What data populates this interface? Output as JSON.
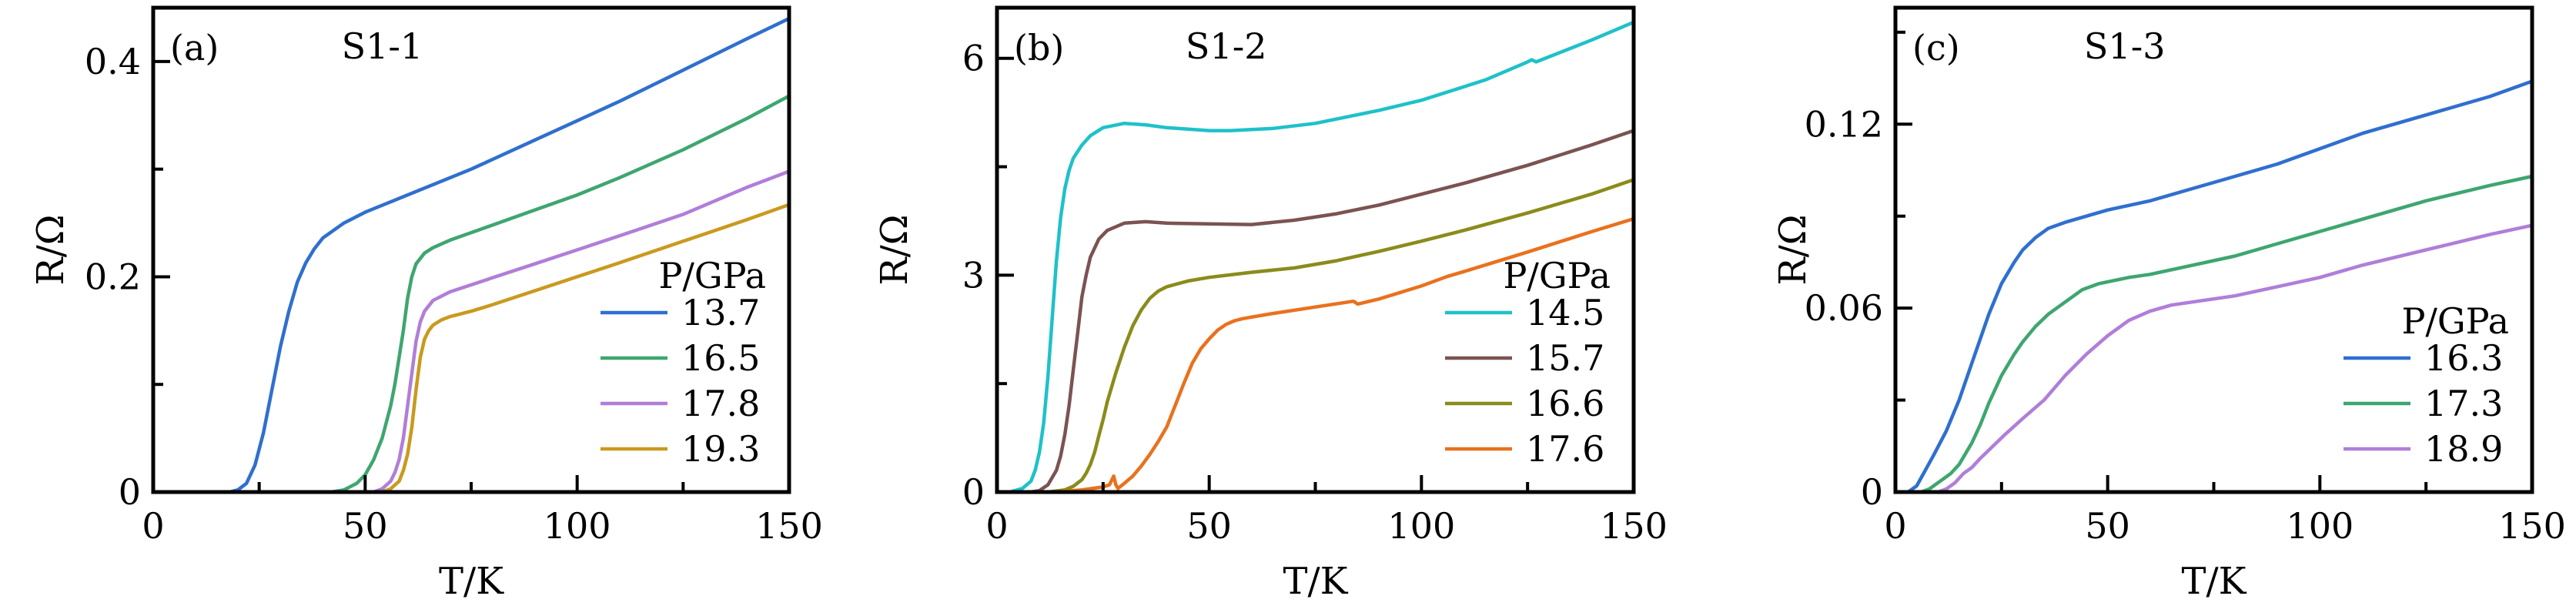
{
  "chart_data": [
    {
      "type": "line",
      "panel_label": "(a)",
      "title": "S1-1",
      "xlabel": "T/K",
      "ylabel": "R/Ω",
      "xlim": [
        0,
        150
      ],
      "ylim": [
        0,
        0.45
      ],
      "xticks": [
        0,
        50,
        100,
        150
      ],
      "xtick_labels": [
        "0",
        "50",
        "100",
        "150"
      ],
      "xminor": [
        25,
        75,
        125
      ],
      "yticks": [
        0,
        0.2,
        0.4
      ],
      "ytick_labels": [
        "0",
        "0.2",
        "0.4"
      ],
      "yminor": [
        0.1,
        0.3
      ],
      "grid": false,
      "legend_title": "P/GPa",
      "legend_position": "lower-right",
      "series": [
        {
          "name": "13.7",
          "color": "#2f6fcf",
          "x": [
            0,
            18,
            20,
            22,
            24,
            26,
            28,
            30,
            32,
            34,
            36,
            38,
            40,
            45,
            50,
            60,
            75,
            90,
            100,
            110,
            125,
            140,
            150
          ],
          "y": [
            0,
            0,
            0.002,
            0.008,
            0.025,
            0.055,
            0.095,
            0.135,
            0.168,
            0.195,
            0.213,
            0.226,
            0.236,
            0.25,
            0.26,
            0.276,
            0.3,
            0.327,
            0.345,
            0.363,
            0.392,
            0.421,
            0.44
          ]
        },
        {
          "name": "16.5",
          "color": "#3ea66f",
          "x": [
            0,
            42,
            45,
            48,
            50,
            52,
            54,
            56,
            57,
            58,
            59,
            60,
            61,
            62,
            64,
            66,
            70,
            80,
            90,
            100,
            110,
            125,
            140,
            150
          ],
          "y": [
            0,
            0,
            0.002,
            0.008,
            0.016,
            0.03,
            0.05,
            0.08,
            0.1,
            0.125,
            0.15,
            0.18,
            0.2,
            0.212,
            0.222,
            0.227,
            0.234,
            0.248,
            0.262,
            0.276,
            0.292,
            0.318,
            0.347,
            0.368
          ]
        },
        {
          "name": "17.8",
          "color": "#b07ed9",
          "x": [
            0,
            52,
            54,
            56,
            57,
            58,
            59,
            60,
            61,
            62,
            63,
            64,
            66,
            68,
            70,
            80,
            90,
            100,
            110,
            125,
            140,
            150
          ],
          "y": [
            0,
            0,
            0.003,
            0.01,
            0.018,
            0.03,
            0.05,
            0.08,
            0.11,
            0.14,
            0.158,
            0.168,
            0.178,
            0.182,
            0.186,
            0.199,
            0.212,
            0.225,
            0.238,
            0.258,
            0.283,
            0.298
          ]
        },
        {
          "name": "19.3",
          "color": "#c99a1e",
          "x": [
            0,
            54,
            56,
            58,
            59,
            60,
            61,
            62,
            63,
            64,
            65,
            66,
            68,
            70,
            75,
            80,
            90,
            100,
            110,
            125,
            140,
            150
          ],
          "y": [
            0,
            0,
            0.003,
            0.01,
            0.02,
            0.035,
            0.06,
            0.095,
            0.125,
            0.142,
            0.15,
            0.155,
            0.16,
            0.163,
            0.168,
            0.174,
            0.187,
            0.2,
            0.213,
            0.233,
            0.253,
            0.267
          ]
        }
      ]
    },
    {
      "type": "line",
      "panel_label": "(b)",
      "title": "S1-2",
      "xlabel": "T/K",
      "ylabel": "R/Ω",
      "xlim": [
        0,
        150
      ],
      "ylim": [
        0,
        6.7
      ],
      "xticks": [
        0,
        50,
        100,
        150
      ],
      "xtick_labels": [
        "0",
        "50",
        "100",
        "150"
      ],
      "xminor": [
        25,
        75,
        125
      ],
      "yticks": [
        0,
        3,
        6
      ],
      "ytick_labels": [
        "0",
        "3",
        "6"
      ],
      "yminor": [
        1.5,
        4.5
      ],
      "grid": false,
      "legend_title": "P/GPa",
      "legend_position": "lower-right",
      "series": [
        {
          "name": "14.5",
          "color": "#1fc1c9",
          "x": [
            0,
            3,
            6,
            8,
            9,
            10,
            11,
            12,
            13,
            14,
            15,
            16,
            17,
            18,
            20,
            22,
            25,
            30,
            35,
            40,
            50,
            55,
            65,
            75,
            90,
            100,
            115,
            125,
            126,
            127,
            140,
            150
          ],
          "y": [
            0,
            0,
            0.05,
            0.15,
            0.3,
            0.55,
            0.95,
            1.6,
            2.4,
            3.2,
            3.8,
            4.2,
            4.45,
            4.62,
            4.8,
            4.93,
            5.04,
            5.1,
            5.08,
            5.04,
            5.0,
            5.0,
            5.03,
            5.1,
            5.28,
            5.42,
            5.7,
            5.95,
            5.98,
            5.95,
            6.25,
            6.5
          ]
        },
        {
          "name": "15.7",
          "color": "#7b5352",
          "x": [
            0,
            8,
            10,
            12,
            14,
            15,
            16,
            17,
            18,
            19,
            20,
            21,
            22,
            24,
            26,
            30,
            35,
            40,
            50,
            60,
            70,
            80,
            90,
            100,
            110,
            125,
            140,
            150
          ],
          "y": [
            0,
            0,
            0.02,
            0.1,
            0.3,
            0.5,
            0.8,
            1.2,
            1.7,
            2.2,
            2.7,
            3.0,
            3.25,
            3.5,
            3.62,
            3.72,
            3.74,
            3.72,
            3.71,
            3.7,
            3.76,
            3.85,
            3.97,
            4.12,
            4.27,
            4.52,
            4.8,
            5.0
          ]
        },
        {
          "name": "16.6",
          "color": "#8b8b1c",
          "x": [
            0,
            12,
            16,
            18,
            20,
            21,
            22,
            23,
            24,
            25,
            26,
            28,
            30,
            32,
            34,
            36,
            38,
            40,
            45,
            50,
            60,
            70,
            80,
            90,
            100,
            110,
            125,
            140,
            150
          ],
          "y": [
            0,
            0,
            0.03,
            0.08,
            0.17,
            0.26,
            0.38,
            0.55,
            0.78,
            1.0,
            1.25,
            1.65,
            2.0,
            2.3,
            2.52,
            2.68,
            2.78,
            2.84,
            2.92,
            2.97,
            3.04,
            3.1,
            3.2,
            3.33,
            3.47,
            3.62,
            3.86,
            4.12,
            4.32
          ]
        },
        {
          "name": "17.6",
          "color": "#e9711e",
          "x": [
            0,
            14,
            20,
            25,
            26.5,
            27.5,
            28,
            28.5,
            30,
            32,
            34,
            36,
            38,
            40,
            42,
            44,
            46,
            48,
            50,
            52,
            54,
            56,
            58,
            65,
            75,
            84,
            85,
            90,
            100,
            106,
            110,
            125,
            140,
            150
          ],
          "y": [
            0,
            0,
            0.03,
            0.07,
            0.1,
            0.22,
            0.1,
            0.05,
            0.12,
            0.22,
            0.36,
            0.52,
            0.7,
            0.9,
            1.2,
            1.5,
            1.78,
            1.98,
            2.12,
            2.24,
            2.32,
            2.37,
            2.4,
            2.47,
            2.56,
            2.64,
            2.6,
            2.67,
            2.85,
            2.98,
            3.05,
            3.32,
            3.6,
            3.78
          ]
        }
      ]
    },
    {
      "type": "line",
      "panel_label": "(c)",
      "title": "S1-3",
      "xlabel": "T/K",
      "ylabel": "R/Ω",
      "xlim": [
        0,
        150
      ],
      "ylim": [
        0,
        0.158
      ],
      "xticks": [
        0,
        50,
        100,
        150
      ],
      "xtick_labels": [
        "0",
        "50",
        "100",
        "150"
      ],
      "xminor": [
        25,
        75,
        125
      ],
      "yticks": [
        0,
        0.06,
        0.12
      ],
      "ytick_labels": [
        "0",
        "0.06",
        "0.12"
      ],
      "yminor": [
        0.03,
        0.09,
        0.15
      ],
      "grid": false,
      "legend_title": "P/GPa",
      "legend_position": "lower-right",
      "series": [
        {
          "name": "16.3",
          "color": "#2f6fcf",
          "x": [
            0,
            3,
            5,
            7,
            9,
            12,
            15,
            18,
            20,
            22,
            25,
            28,
            30,
            33,
            36,
            40,
            45,
            50,
            60,
            70,
            80,
            90,
            100,
            110,
            125,
            140,
            150
          ],
          "y": [
            0,
            0,
            0.002,
            0.007,
            0.012,
            0.02,
            0.03,
            0.042,
            0.05,
            0.058,
            0.068,
            0.075,
            0.079,
            0.083,
            0.086,
            0.088,
            0.09,
            0.092,
            0.095,
            0.099,
            0.103,
            0.107,
            0.112,
            0.117,
            0.123,
            0.129,
            0.134
          ]
        },
        {
          "name": "17.3",
          "color": "#3ea66f",
          "x": [
            0,
            6,
            8,
            10,
            13,
            15,
            18,
            20,
            22,
            25,
            28,
            30,
            33,
            36,
            40,
            44,
            48,
            55,
            60,
            70,
            80,
            90,
            100,
            110,
            125,
            140,
            150
          ],
          "y": [
            0,
            0,
            0.001,
            0.003,
            0.006,
            0.009,
            0.016,
            0.022,
            0.029,
            0.038,
            0.045,
            0.049,
            0.054,
            0.058,
            0.062,
            0.066,
            0.068,
            0.07,
            0.071,
            0.074,
            0.077,
            0.081,
            0.085,
            0.089,
            0.095,
            0.1,
            0.103
          ]
        },
        {
          "name": "18.9",
          "color": "#b07ed9",
          "x": [
            0,
            10,
            12,
            14,
            16,
            18,
            20,
            23,
            26,
            30,
            35,
            40,
            45,
            50,
            55,
            60,
            65,
            70,
            80,
            90,
            100,
            110,
            125,
            140,
            150
          ],
          "y": [
            0,
            0,
            0.001,
            0.003,
            0.006,
            0.008,
            0.011,
            0.015,
            0.019,
            0.024,
            0.03,
            0.038,
            0.045,
            0.051,
            0.056,
            0.059,
            0.061,
            0.062,
            0.064,
            0.067,
            0.07,
            0.074,
            0.079,
            0.084,
            0.087
          ]
        }
      ]
    }
  ]
}
